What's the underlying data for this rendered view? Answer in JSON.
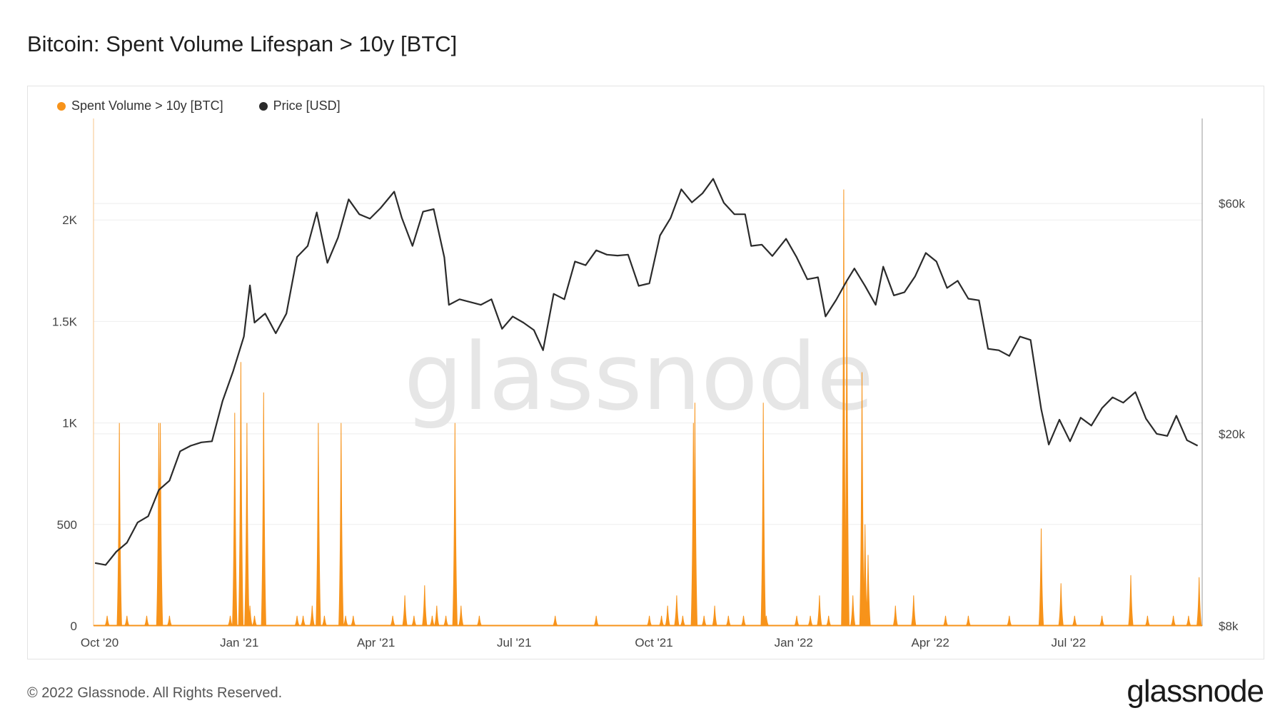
{
  "title": "Bitcoin: Spent Volume Lifespan > 10y [BTC]",
  "footer": {
    "copyright": "© 2022 Glassnode. All Rights Reserved.",
    "logo": "glassnode"
  },
  "watermark": "glassnode",
  "colors": {
    "volume": "#f7931a",
    "price": "#2b2b2b",
    "grid": "#eeeeee",
    "axis": "#999999"
  },
  "chart_data": {
    "type": "bar+line",
    "legend": [
      {
        "name": "Spent Volume > 10y [BTC]",
        "color": "#f7931a"
      },
      {
        "name": "Price [USD]",
        "color": "#2b2b2b"
      }
    ],
    "legend_position": "top-left",
    "x_range": [
      "2020-09-27",
      "2022-09-27"
    ],
    "x_ticks": [
      {
        "date": "2020-10-01",
        "label": "Oct '20"
      },
      {
        "date": "2021-01-01",
        "label": "Jan '21"
      },
      {
        "date": "2021-04-01",
        "label": "Apr '21"
      },
      {
        "date": "2021-07-01",
        "label": "Jul '21"
      },
      {
        "date": "2021-10-01",
        "label": "Oct '21"
      },
      {
        "date": "2022-01-01",
        "label": "Jan '22"
      },
      {
        "date": "2022-04-01",
        "label": "Apr '22"
      },
      {
        "date": "2022-07-01",
        "label": "Jul '22"
      }
    ],
    "y_left": {
      "range": [
        0,
        2500
      ],
      "ticks": [
        {
          "value": 0,
          "label": "0"
        },
        {
          "value": 500,
          "label": "500"
        },
        {
          "value": 1000,
          "label": "1K"
        },
        {
          "value": 1500,
          "label": "1.5K"
        },
        {
          "value": 2000,
          "label": "2K"
        }
      ]
    },
    "y_right": {
      "scale": "log",
      "range": [
        8000,
        90000
      ],
      "ticks": [
        {
          "value": 8000,
          "label": "$8k"
        },
        {
          "value": 20000,
          "label": "$20k"
        },
        {
          "value": 60000,
          "label": "$60k"
        }
      ]
    },
    "grid": true,
    "volume_series": {
      "name": "Spent Volume > 10y [BTC]",
      "points": [
        [
          "2020-10-06",
          50
        ],
        [
          "2020-10-14",
          1000
        ],
        [
          "2020-10-19",
          50
        ],
        [
          "2020-11-01",
          50
        ],
        [
          "2020-11-09",
          1000
        ],
        [
          "2020-11-10",
          1000
        ],
        [
          "2020-11-16",
          50
        ],
        [
          "2020-12-26",
          50
        ],
        [
          "2020-12-29",
          1050
        ],
        [
          "2021-01-02",
          1300
        ],
        [
          "2021-01-06",
          1000
        ],
        [
          "2021-01-08",
          100
        ],
        [
          "2021-01-11",
          50
        ],
        [
          "2021-01-17",
          1150
        ],
        [
          "2021-02-08",
          50
        ],
        [
          "2021-02-12",
          50
        ],
        [
          "2021-02-18",
          100
        ],
        [
          "2021-02-22",
          1000
        ],
        [
          "2021-02-26",
          50
        ],
        [
          "2021-03-09",
          1000
        ],
        [
          "2021-03-12",
          50
        ],
        [
          "2021-03-17",
          50
        ],
        [
          "2021-04-12",
          50
        ],
        [
          "2021-04-20",
          150
        ],
        [
          "2021-04-26",
          50
        ],
        [
          "2021-05-03",
          200
        ],
        [
          "2021-05-08",
          50
        ],
        [
          "2021-05-11",
          100
        ],
        [
          "2021-05-17",
          50
        ],
        [
          "2021-05-23",
          1000
        ],
        [
          "2021-05-27",
          100
        ],
        [
          "2021-06-08",
          50
        ],
        [
          "2021-07-28",
          50
        ],
        [
          "2021-08-24",
          50
        ],
        [
          "2021-09-28",
          50
        ],
        [
          "2021-10-06",
          50
        ],
        [
          "2021-10-10",
          100
        ],
        [
          "2021-10-16",
          150
        ],
        [
          "2021-10-20",
          50
        ],
        [
          "2021-10-27",
          1000
        ],
        [
          "2021-10-28",
          1100
        ],
        [
          "2021-11-03",
          50
        ],
        [
          "2021-11-10",
          100
        ],
        [
          "2021-11-19",
          50
        ],
        [
          "2021-11-29",
          50
        ],
        [
          "2021-12-12",
          1100
        ],
        [
          "2021-12-14",
          50
        ],
        [
          "2022-01-03",
          50
        ],
        [
          "2022-01-12",
          50
        ],
        [
          "2022-01-18",
          150
        ],
        [
          "2022-01-24",
          50
        ],
        [
          "2022-02-03",
          2150
        ],
        [
          "2022-02-05",
          1700
        ],
        [
          "2022-02-09",
          150
        ],
        [
          "2022-02-15",
          1250
        ],
        [
          "2022-02-17",
          500
        ],
        [
          "2022-02-19",
          350
        ],
        [
          "2022-03-09",
          100
        ],
        [
          "2022-03-21",
          150
        ],
        [
          "2022-04-11",
          50
        ],
        [
          "2022-04-26",
          50
        ],
        [
          "2022-05-23",
          50
        ],
        [
          "2022-06-13",
          480
        ],
        [
          "2022-06-26",
          210
        ],
        [
          "2022-07-05",
          50
        ],
        [
          "2022-07-23",
          50
        ],
        [
          "2022-08-11",
          250
        ],
        [
          "2022-08-22",
          50
        ],
        [
          "2022-09-08",
          50
        ],
        [
          "2022-09-18",
          50
        ],
        [
          "2022-09-25",
          240
        ]
      ]
    },
    "price_series": {
      "name": "Price [USD]",
      "points": [
        [
          "2020-09-28",
          10800
        ],
        [
          "2020-10-05",
          10700
        ],
        [
          "2020-10-12",
          11400
        ],
        [
          "2020-10-19",
          11900
        ],
        [
          "2020-10-26",
          13100
        ],
        [
          "2020-11-02",
          13500
        ],
        [
          "2020-11-09",
          15300
        ],
        [
          "2020-11-16",
          16000
        ],
        [
          "2020-11-23",
          18400
        ],
        [
          "2020-11-30",
          18900
        ],
        [
          "2020-12-07",
          19200
        ],
        [
          "2020-12-14",
          19300
        ],
        [
          "2020-12-21",
          23400
        ],
        [
          "2020-12-28",
          27000
        ],
        [
          "2021-01-04",
          31800
        ],
        [
          "2021-01-08",
          40600
        ],
        [
          "2021-01-11",
          34000
        ],
        [
          "2021-01-18",
          35500
        ],
        [
          "2021-01-25",
          32300
        ],
        [
          "2021-02-01",
          35500
        ],
        [
          "2021-02-08",
          46500
        ],
        [
          "2021-02-15",
          49000
        ],
        [
          "2021-02-21",
          57500
        ],
        [
          "2021-02-28",
          45200
        ],
        [
          "2021-03-07",
          51000
        ],
        [
          "2021-03-14",
          61200
        ],
        [
          "2021-03-21",
          57000
        ],
        [
          "2021-03-28",
          55800
        ],
        [
          "2021-04-04",
          58700
        ],
        [
          "2021-04-13",
          63500
        ],
        [
          "2021-04-18",
          56000
        ],
        [
          "2021-04-25",
          49000
        ],
        [
          "2021-05-02",
          57700
        ],
        [
          "2021-05-09",
          58400
        ],
        [
          "2021-05-16",
          46400
        ],
        [
          "2021-05-19",
          37000
        ],
        [
          "2021-05-26",
          38000
        ],
        [
          "2021-06-02",
          37500
        ],
        [
          "2021-06-09",
          37000
        ],
        [
          "2021-06-16",
          38000
        ],
        [
          "2021-06-23",
          33000
        ],
        [
          "2021-06-30",
          35000
        ],
        [
          "2021-07-07",
          34000
        ],
        [
          "2021-07-14",
          32800
        ],
        [
          "2021-07-20",
          29800
        ],
        [
          "2021-07-27",
          39000
        ],
        [
          "2021-08-03",
          38000
        ],
        [
          "2021-08-10",
          45500
        ],
        [
          "2021-08-17",
          44700
        ],
        [
          "2021-08-24",
          48000
        ],
        [
          "2021-08-31",
          47000
        ],
        [
          "2021-09-07",
          46800
        ],
        [
          "2021-09-14",
          47000
        ],
        [
          "2021-09-21",
          40500
        ],
        [
          "2021-09-28",
          41000
        ],
        [
          "2021-10-05",
          51500
        ],
        [
          "2021-10-12",
          56000
        ],
        [
          "2021-10-19",
          64200
        ],
        [
          "2021-10-26",
          60300
        ],
        [
          "2021-11-02",
          63000
        ],
        [
          "2021-11-09",
          67500
        ],
        [
          "2021-11-16",
          60200
        ],
        [
          "2021-11-23",
          57000
        ],
        [
          "2021-11-30",
          57000
        ],
        [
          "2021-12-04",
          49000
        ],
        [
          "2021-12-11",
          49300
        ],
        [
          "2021-12-18",
          46700
        ],
        [
          "2021-12-27",
          50700
        ],
        [
          "2022-01-03",
          46400
        ],
        [
          "2022-01-10",
          41800
        ],
        [
          "2022-01-17",
          42200
        ],
        [
          "2022-01-22",
          35000
        ],
        [
          "2022-01-29",
          37900
        ],
        [
          "2022-02-05",
          41500
        ],
        [
          "2022-02-10",
          44000
        ],
        [
          "2022-02-17",
          40500
        ],
        [
          "2022-02-24",
          37000
        ],
        [
          "2022-03-01",
          44400
        ],
        [
          "2022-03-08",
          38700
        ],
        [
          "2022-03-15",
          39300
        ],
        [
          "2022-03-22",
          42400
        ],
        [
          "2022-03-29",
          47400
        ],
        [
          "2022-04-05",
          45500
        ],
        [
          "2022-04-12",
          40100
        ],
        [
          "2022-04-19",
          41500
        ],
        [
          "2022-04-26",
          38100
        ],
        [
          "2022-05-03",
          37800
        ],
        [
          "2022-05-09",
          30000
        ],
        [
          "2022-05-16",
          29800
        ],
        [
          "2022-05-23",
          29000
        ],
        [
          "2022-05-30",
          31800
        ],
        [
          "2022-06-06",
          31300
        ],
        [
          "2022-06-13",
          22500
        ],
        [
          "2022-06-18",
          19000
        ],
        [
          "2022-06-25",
          21400
        ],
        [
          "2022-07-02",
          19300
        ],
        [
          "2022-07-09",
          21600
        ],
        [
          "2022-07-16",
          20800
        ],
        [
          "2022-07-23",
          22600
        ],
        [
          "2022-07-30",
          23800
        ],
        [
          "2022-08-06",
          23200
        ],
        [
          "2022-08-14",
          24400
        ],
        [
          "2022-08-21",
          21500
        ],
        [
          "2022-08-28",
          20000
        ],
        [
          "2022-09-04",
          19800
        ],
        [
          "2022-09-10",
          21800
        ],
        [
          "2022-09-17",
          19400
        ],
        [
          "2022-09-24",
          18900
        ]
      ]
    }
  }
}
